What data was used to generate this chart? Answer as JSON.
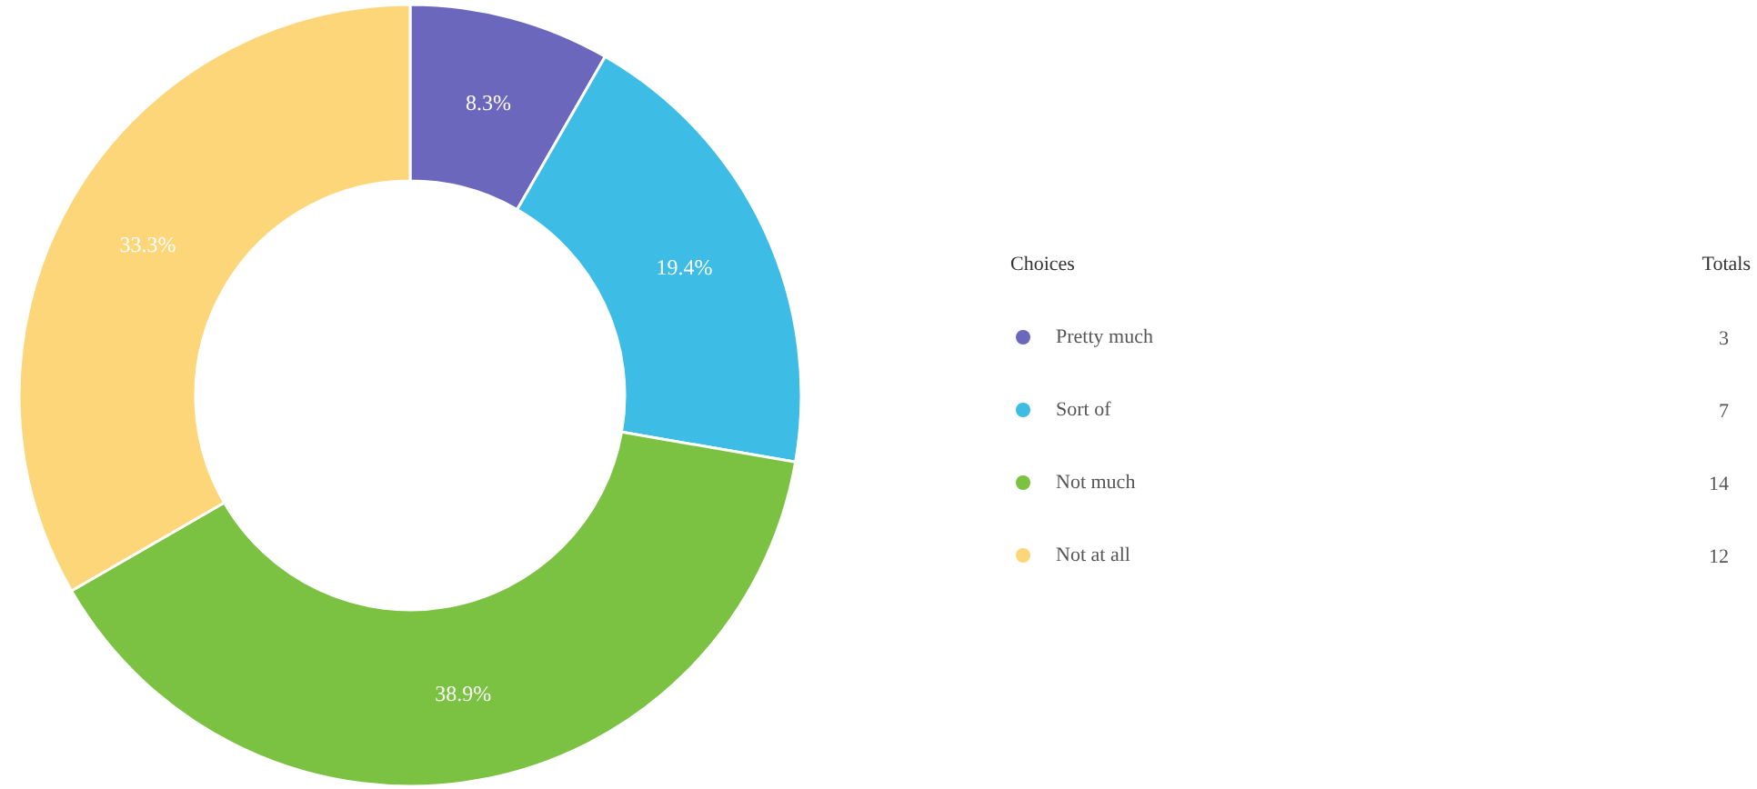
{
  "chart_data": {
    "type": "donut",
    "categories": [
      "Pretty much",
      "Sort of",
      "Not much",
      "Not at all"
    ],
    "values": [
      8.3,
      19.4,
      38.9,
      33.3
    ],
    "colors": [
      "#6b67bd",
      "#3dbce6",
      "#7bc142",
      "#fdd67a"
    ],
    "value_labels": [
      "8.3%",
      "19.4%",
      "38.9%",
      "33.3%"
    ],
    "legend": "right",
    "legend_title": "Choices",
    "annotations": [
      "Totals",
      "3",
      "7",
      "14",
      "12"
    ]
  }
}
